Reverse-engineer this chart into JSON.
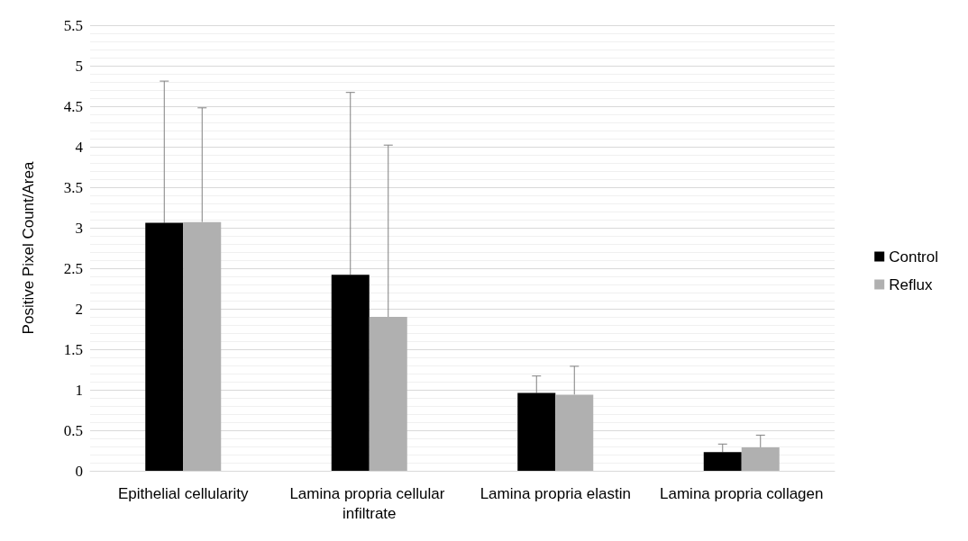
{
  "chart_data": {
    "type": "bar",
    "ylabel": "Positive Pixel Count/Area",
    "categories": [
      "Epithelial cellularity",
      "Lamina propria cellular infiltrate",
      "Lamina propria elastin",
      "Lamina propria collagen"
    ],
    "series": [
      {
        "name": "Control",
        "color": "#000000",
        "values": [
          3.06,
          2.42,
          0.96,
          0.23
        ],
        "errors": [
          [
            3.06,
            4.81
          ],
          [
            2.42,
            4.67
          ],
          [
            0.96,
            1.17
          ],
          [
            0.23,
            0.33
          ]
        ]
      },
      {
        "name": "Reflux",
        "color": "#b0b0b0",
        "values": [
          3.07,
          1.9,
          0.94,
          0.29
        ],
        "errors": [
          [
            3.07,
            4.48
          ],
          [
            1.9,
            4.02
          ],
          [
            0.94,
            1.29
          ],
          [
            0.29,
            0.44
          ]
        ]
      }
    ],
    "ylim": [
      0,
      5.5
    ],
    "yticks": [
      0,
      0.5,
      1,
      1.5,
      2,
      2.5,
      3,
      3.5,
      4,
      4.5,
      5,
      5.5
    ],
    "grid": "y",
    "legend": "right"
  }
}
